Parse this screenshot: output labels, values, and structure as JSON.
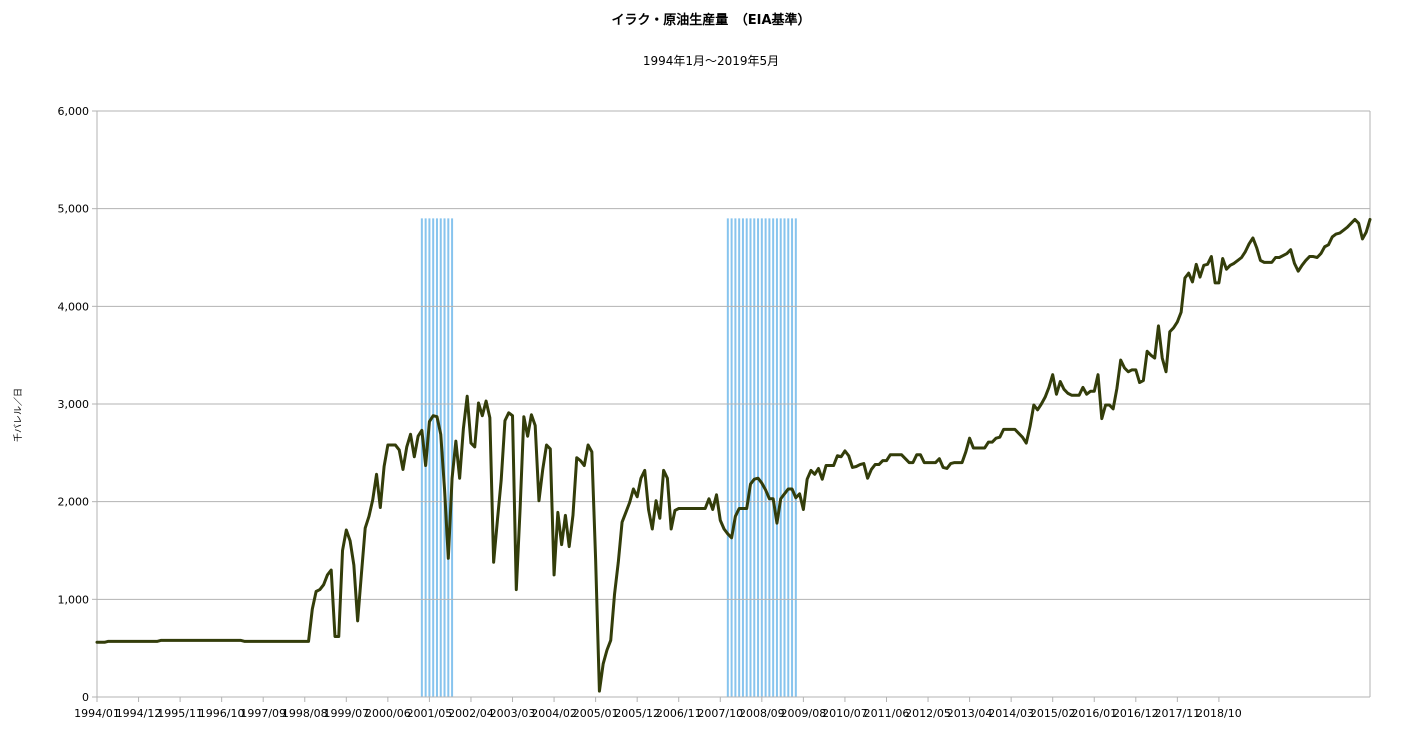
{
  "chart_data": {
    "type": "line",
    "title": "イラク・原油生産量　（EIA基準）",
    "subtitle": "1994年1月～2019年5月",
    "xlabel": "",
    "ylabel": "千バレル／日",
    "ylim": [
      0,
      6000
    ],
    "y_ticks": [
      "0",
      "1,000",
      "2,000",
      "3,000",
      "4,000",
      "5,000",
      "6,000"
    ],
    "x_start": "1994/01",
    "x_tick_labels": [
      "1994/01",
      "1994/12",
      "1995/11",
      "1996/10",
      "1997/09",
      "1998/08",
      "1999/07",
      "2000/06",
      "2001/05",
      "2002/04",
      "2003/03",
      "2004/02",
      "2005/01",
      "2005/12",
      "2006/11",
      "2007/10",
      "2008/09",
      "2009/08",
      "2010/07",
      "2011/06",
      "2012/05",
      "2013/04",
      "2014/03",
      "2015/02",
      "2016/01",
      "2016/12",
      "2017/11",
      "2018/10"
    ],
    "grid": "horizontal",
    "line_color": "#333d0a",
    "shade_color": "#87c4ee",
    "shaded_periods": [
      {
        "start": "2001/03",
        "end": "2001/11",
        "top": 4900
      },
      {
        "start": "2007/12",
        "end": "2009/06",
        "top": 4900
      }
    ],
    "series": [
      {
        "name": "",
        "values": [
          560,
          560,
          560,
          570,
          570,
          570,
          570,
          570,
          570,
          570,
          570,
          570,
          570,
          570,
          570,
          570,
          570,
          580,
          580,
          580,
          580,
          580,
          580,
          580,
          580,
          580,
          580,
          580,
          580,
          580,
          580,
          580,
          580,
          580,
          580,
          580,
          580,
          580,
          580,
          570,
          570,
          570,
          570,
          570,
          570,
          570,
          570,
          570,
          570,
          570,
          570,
          570,
          570,
          570,
          570,
          570,
          570,
          900,
          1080,
          1100,
          1150,
          1250,
          1300,
          620,
          620,
          1500,
          1710,
          1600,
          1350,
          780,
          1260,
          1730,
          1850,
          2020,
          2280,
          1940,
          2360,
          2580,
          2580,
          2580,
          2530,
          2330,
          2560,
          2690,
          2460,
          2670,
          2730,
          2370,
          2820,
          2880,
          2870,
          2690,
          2130,
          1420,
          2240,
          2620,
          2240,
          2750,
          3080,
          2600,
          2560,
          3010,
          2880,
          3030,
          2860,
          1380,
          1810,
          2220,
          2830,
          2910,
          2880,
          1100,
          1920,
          2870,
          2670,
          2890,
          2780,
          2010,
          2330,
          2580,
          2540,
          1250,
          1890,
          1560,
          1860,
          1540,
          1860,
          2450,
          2420,
          2370,
          2580,
          2510,
          1410,
          60,
          340,
          480,
          580,
          1050,
          1380,
          1790,
          1890,
          1990,
          2130,
          2050,
          2240,
          2320,
          1920,
          1720,
          2010,
          1830,
          2320,
          2240,
          1720,
          1910,
          1930,
          1930,
          1930,
          1930,
          1930,
          1930,
          1930,
          1930,
          2030,
          1920,
          2070,
          1810,
          1720,
          1670,
          1630,
          1850,
          1930,
          1930,
          1930,
          2180,
          2230,
          2240,
          2190,
          2120,
          2030,
          2030,
          1780,
          2030,
          2080,
          2130,
          2130,
          2040,
          2080,
          1920,
          2230,
          2320,
          2280,
          2340,
          2230,
          2370,
          2370,
          2370,
          2470,
          2460,
          2520,
          2470,
          2350,
          2360,
          2380,
          2390,
          2240,
          2330,
          2380,
          2380,
          2420,
          2420,
          2480,
          2480,
          2480,
          2480,
          2440,
          2400,
          2400,
          2480,
          2480,
          2400,
          2400,
          2400,
          2400,
          2440,
          2350,
          2340,
          2390,
          2400,
          2400,
          2400,
          2510,
          2650,
          2550,
          2550,
          2550,
          2550,
          2610,
          2610,
          2650,
          2660,
          2740,
          2740,
          2740,
          2740,
          2700,
          2660,
          2600,
          2770,
          2990,
          2940,
          3000,
          3070,
          3170,
          3300,
          3100,
          3230,
          3150,
          3110,
          3090,
          3090,
          3090,
          3170,
          3100,
          3130,
          3130,
          3300,
          2850,
          2990,
          2990,
          2950,
          3160,
          3450,
          3370,
          3330,
          3350,
          3350,
          3220,
          3240,
          3540,
          3500,
          3470,
          3800,
          3470,
          3330,
          3740,
          3780,
          3840,
          3940,
          4290,
          4340,
          4250,
          4430,
          4300,
          4420,
          4430,
          4510,
          4240,
          4240,
          4490,
          4380,
          4420,
          4440,
          4470,
          4500,
          4560,
          4640,
          4700,
          4600,
          4470,
          4450,
          4450,
          4450,
          4500,
          4500,
          4520,
          4540,
          4580,
          4440,
          4360,
          4420,
          4470,
          4510,
          4510,
          4500,
          4540,
          4610,
          4630,
          4710,
          4740,
          4750,
          4780,
          4810,
          4850,
          4890,
          4850,
          4690,
          4760,
          4890
        ]
      }
    ]
  }
}
